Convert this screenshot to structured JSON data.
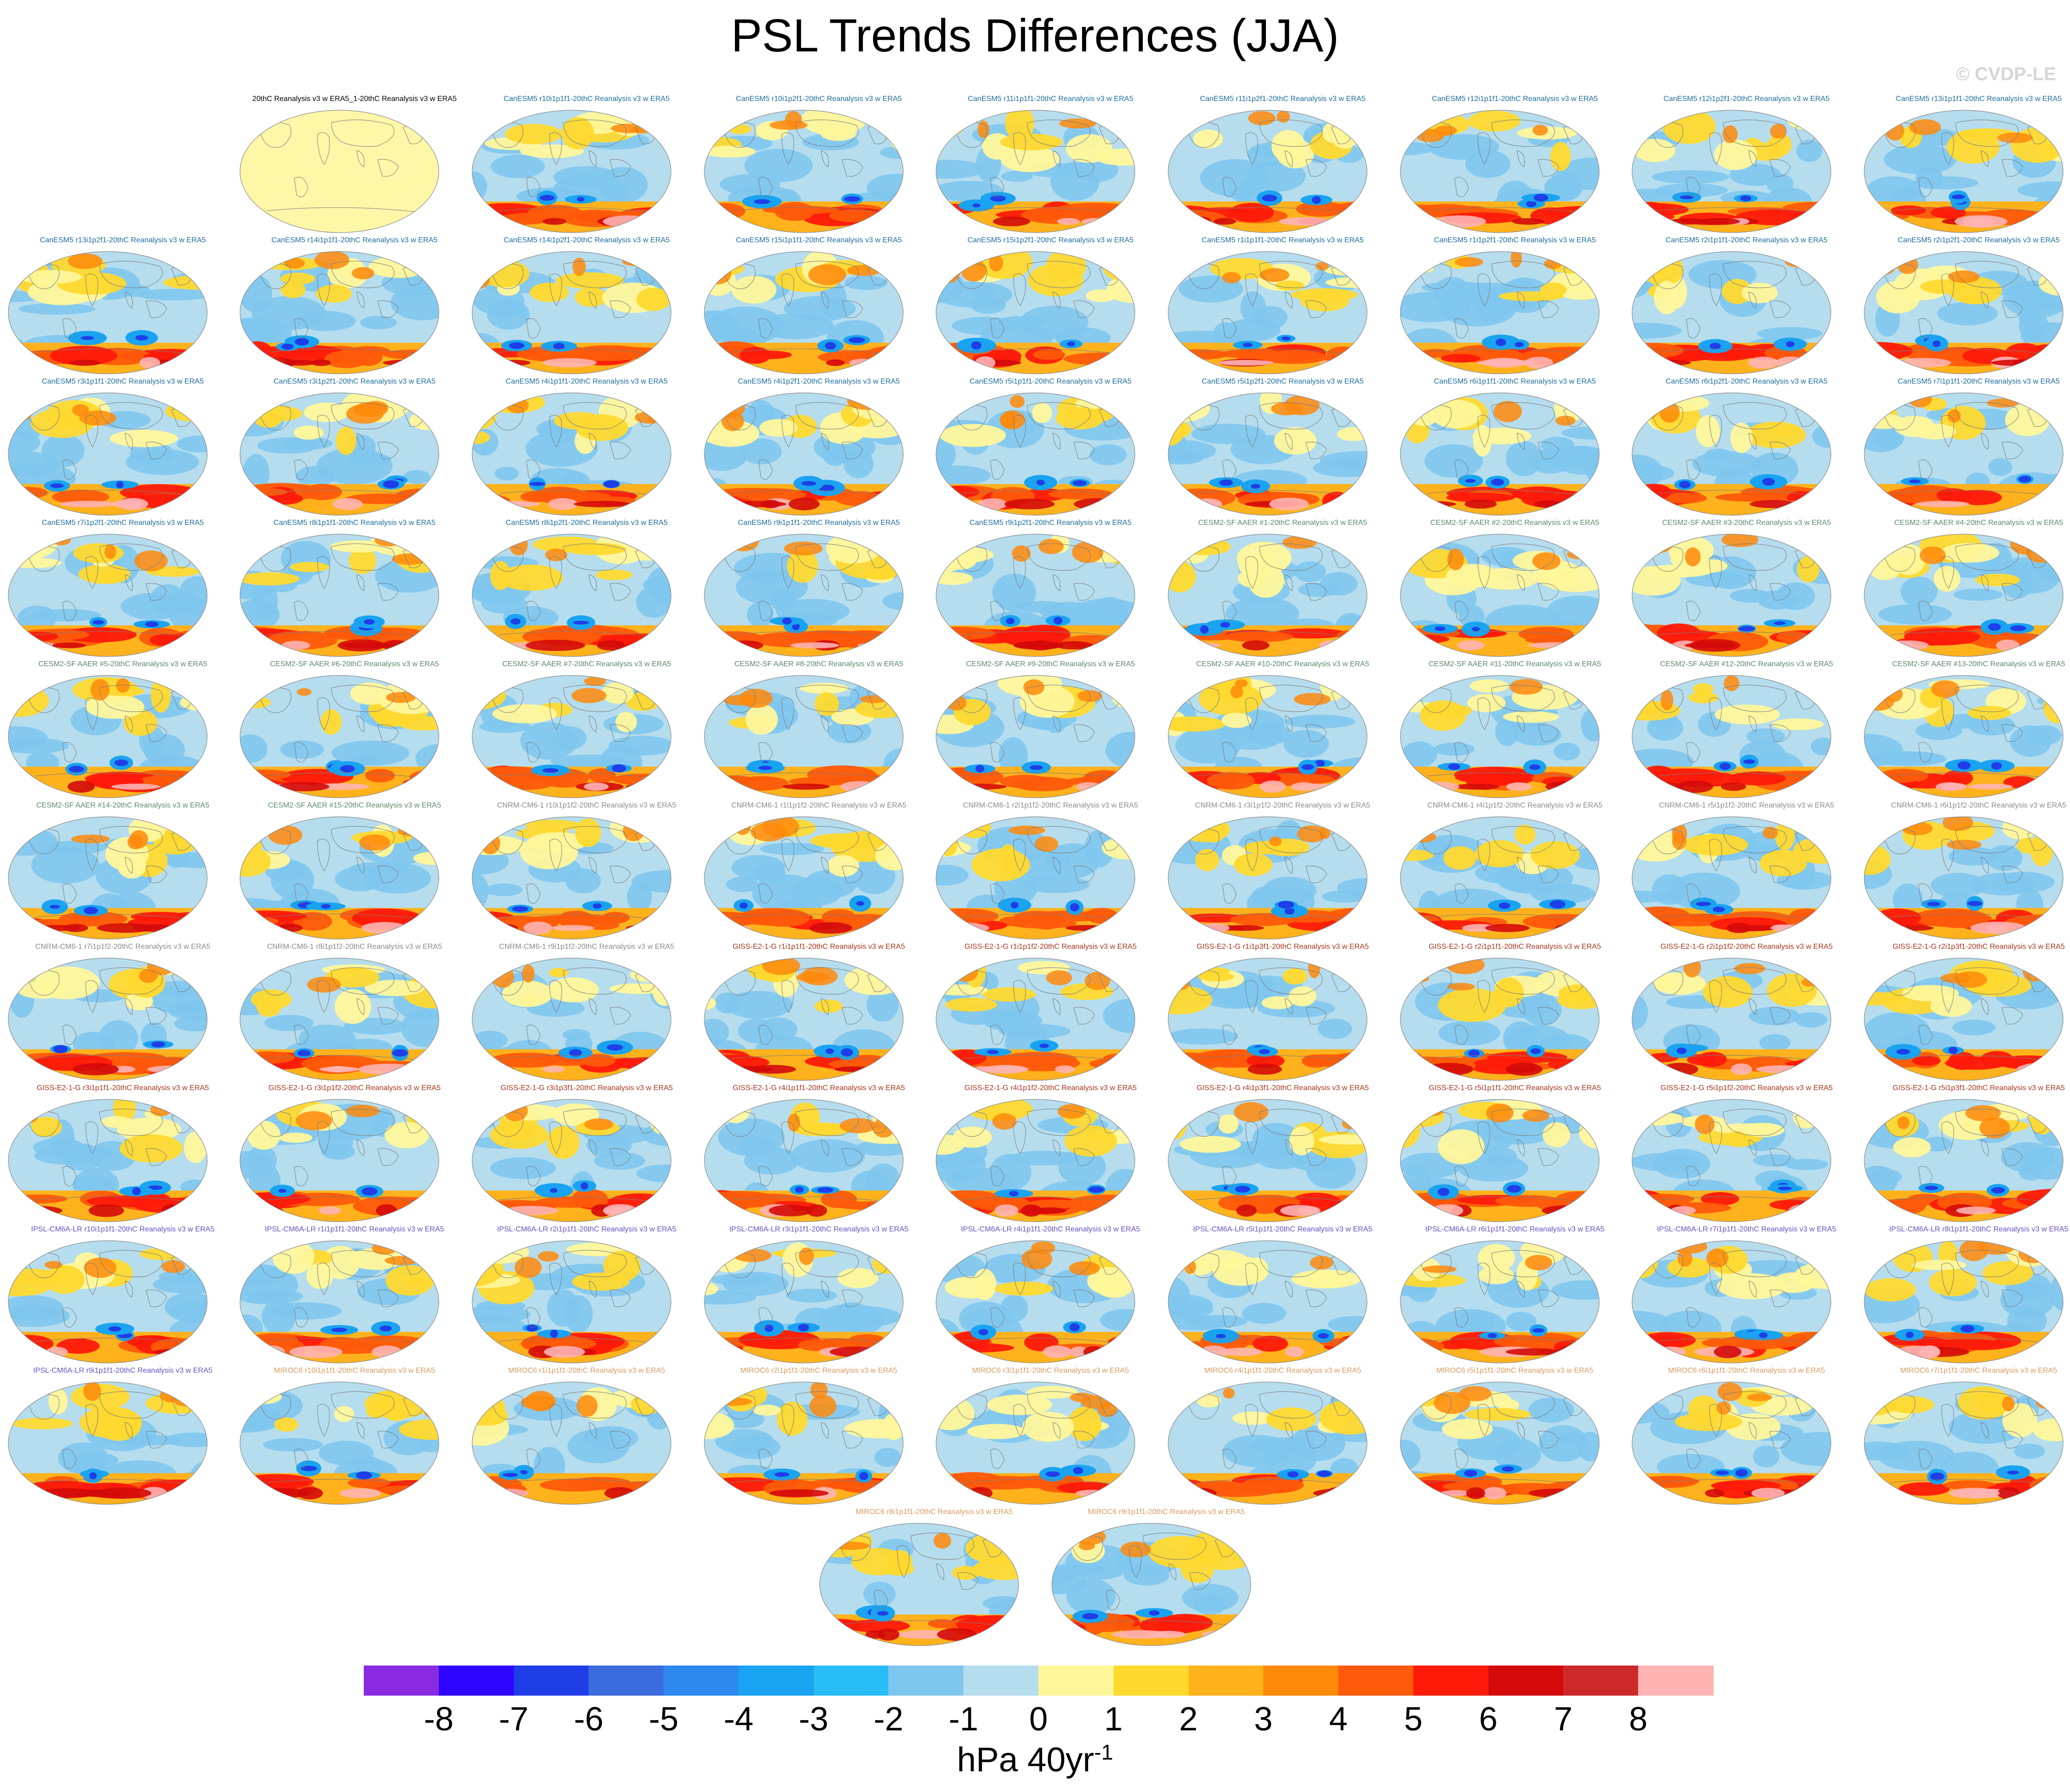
{
  "title": "PSL Trends Differences (JJA)",
  "watermark": "© CVDP-LE",
  "units": {
    "text": "hPa 40yr",
    "superscript": "-1"
  },
  "colorbar": {
    "colors": [
      "#8a2be2",
      "#2d05ff",
      "#1f3ee8",
      "#3a6cdd",
      "#2f88ee",
      "#1aa3f0",
      "#29bdf6",
      "#7fc6ee",
      "#b5ddee",
      "#fff79a",
      "#ffd92e",
      "#ffb21c",
      "#ff8a0a",
      "#ff5a0a",
      "#ff1a0a",
      "#d40a0a",
      "#cc2a2a",
      "#ffb4b4"
    ],
    "labels": [
      "-8",
      "-7",
      "-6",
      "-5",
      "-4",
      "-3",
      "-2",
      "-1",
      "0",
      "1",
      "2",
      "3",
      "4",
      "5",
      "6",
      "7",
      "8"
    ]
  },
  "group_colors": {
    "obs": "#000000",
    "CanESM5": "#1c6e9c",
    "CESM2": "#5a8a6a",
    "CNRM": "#8a8a8a",
    "GISS": "#a6361b",
    "IPSL": "#6a4fc2",
    "MIROC6": "#d99a5e"
  },
  "panels": [
    {
      "title": "20thC Reanalysis v3 w ERA5_1-20thC Reanalysis v3 w ERA5",
      "group": "obs",
      "style": "blank"
    },
    {
      "title": "CanESM5 r10i1p1f1-20thC Reanalysis v3 w ERA5",
      "group": "CanESM5",
      "style": "map"
    },
    {
      "title": "CanESM5 r10i1p2f1-20thC Reanalysis v3 w ERA5",
      "group": "CanESM5",
      "style": "map"
    },
    {
      "title": "CanESM5 r11i1p1f1-20thC Reanalysis v3 w ERA5",
      "group": "CanESM5",
      "style": "map"
    },
    {
      "title": "CanESM5 r11i1p2f1-20thC Reanalysis v3 w ERA5",
      "group": "CanESM5",
      "style": "map"
    },
    {
      "title": "CanESM5 r12i1p1f1-20thC Reanalysis v3 w ERA5",
      "group": "CanESM5",
      "style": "map"
    },
    {
      "title": "CanESM5 r12i1p2f1-20thC Reanalysis v3 w ERA5",
      "group": "CanESM5",
      "style": "map"
    },
    {
      "title": "CanESM5 r13i1p1f1-20thC Reanalysis v3 w ERA5",
      "group": "CanESM5",
      "style": "map"
    },
    {
      "title": "CanESM5 r13i1p2f1-20thC Reanalysis v3 w ERA5",
      "group": "CanESM5",
      "style": "map"
    },
    {
      "title": "CanESM5 r14i1p1f1-20thC Reanalysis v3 w ERA5",
      "group": "CanESM5",
      "style": "map"
    },
    {
      "title": "CanESM5 r14i1p2f1-20thC Reanalysis v3 w ERA5",
      "group": "CanESM5",
      "style": "map"
    },
    {
      "title": "CanESM5 r15i1p1f1-20thC Reanalysis v3 w ERA5",
      "group": "CanESM5",
      "style": "map"
    },
    {
      "title": "CanESM5 r15i1p2f1-20thC Reanalysis v3 w ERA5",
      "group": "CanESM5",
      "style": "map"
    },
    {
      "title": "CanESM5 r1i1p1f1-20thC Reanalysis v3 w ERA5",
      "group": "CanESM5",
      "style": "map"
    },
    {
      "title": "CanESM5 r1i1p2f1-20thC Reanalysis v3 w ERA5",
      "group": "CanESM5",
      "style": "map"
    },
    {
      "title": "CanESM5 r2i1p1f1-20thC Reanalysis v3 w ERA5",
      "group": "CanESM5",
      "style": "map"
    },
    {
      "title": "CanESM5 r2i1p2f1-20thC Reanalysis v3 w ERA5",
      "group": "CanESM5",
      "style": "map"
    },
    {
      "title": "CanESM5 r3i1p1f1-20thC Reanalysis v3 w ERA5",
      "group": "CanESM5",
      "style": "map"
    },
    {
      "title": "CanESM5 r3i1p2f1-20thC Reanalysis v3 w ERA5",
      "group": "CanESM5",
      "style": "map"
    },
    {
      "title": "CanESM5 r4i1p1f1-20thC Reanalysis v3 w ERA5",
      "group": "CanESM5",
      "style": "map"
    },
    {
      "title": "CanESM5 r4i1p2f1-20thC Reanalysis v3 w ERA5",
      "group": "CanESM5",
      "style": "map"
    },
    {
      "title": "CanESM5 r5i1p1f1-20thC Reanalysis v3 w ERA5",
      "group": "CanESM5",
      "style": "map"
    },
    {
      "title": "CanESM5 r5i1p2f1-20thC Reanalysis v3 w ERA5",
      "group": "CanESM5",
      "style": "map"
    },
    {
      "title": "CanESM5 r6i1p1f1-20thC Reanalysis v3 w ERA5",
      "group": "CanESM5",
      "style": "map"
    },
    {
      "title": "CanESM5 r6i1p2f1-20thC Reanalysis v3 w ERA5",
      "group": "CanESM5",
      "style": "map"
    },
    {
      "title": "CanESM5 r7i1p1f1-20thC Reanalysis v3 w ERA5",
      "group": "CanESM5",
      "style": "map"
    },
    {
      "title": "CanESM5 r7i1p2f1-20thC Reanalysis v3 w ERA5",
      "group": "CanESM5",
      "style": "map"
    },
    {
      "title": "CanESM5 r8i1p1f1-20thC Reanalysis v3 w ERA5",
      "group": "CanESM5",
      "style": "map"
    },
    {
      "title": "CanESM5 r8i1p2f1-20thC Reanalysis v3 w ERA5",
      "group": "CanESM5",
      "style": "map"
    },
    {
      "title": "CanESM5 r9i1p1f1-20thC Reanalysis v3 w ERA5",
      "group": "CanESM5",
      "style": "map"
    },
    {
      "title": "CanESM5 r9i1p2f1-20thC Reanalysis v3 w ERA5",
      "group": "CanESM5",
      "style": "map"
    },
    {
      "title": "CESM2-SF AAER #1-20thC Reanalysis v3 w ERA5",
      "group": "CESM2",
      "style": "map"
    },
    {
      "title": "CESM2-SF AAER #2-20thC Reanalysis v3 w ERA5",
      "group": "CESM2",
      "style": "map"
    },
    {
      "title": "CESM2-SF AAER #3-20thC Reanalysis v3 w ERA5",
      "group": "CESM2",
      "style": "map"
    },
    {
      "title": "CESM2-SF AAER #4-20thC Reanalysis v3 w ERA5",
      "group": "CESM2",
      "style": "map"
    },
    {
      "title": "CESM2-SF AAER #5-20thC Reanalysis v3 w ERA5",
      "group": "CESM2",
      "style": "map"
    },
    {
      "title": "CESM2-SF AAER #6-20thC Reanalysis v3 w ERA5",
      "group": "CESM2",
      "style": "map"
    },
    {
      "title": "CESM2-SF AAER #7-20thC Reanalysis v3 w ERA5",
      "group": "CESM2",
      "style": "map"
    },
    {
      "title": "CESM2-SF AAER #8-20thC Reanalysis v3 w ERA5",
      "group": "CESM2",
      "style": "map"
    },
    {
      "title": "CESM2-SF AAER #9-20thC Reanalysis v3 w ERA5",
      "group": "CESM2",
      "style": "map"
    },
    {
      "title": "CESM2-SF AAER #10-20thC Reanalysis v3 w ERA5",
      "group": "CESM2",
      "style": "map"
    },
    {
      "title": "CESM2-SF AAER #11-20thC Reanalysis v3 w ERA5",
      "group": "CESM2",
      "style": "map"
    },
    {
      "title": "CESM2-SF AAER #12-20thC Reanalysis v3 w ERA5",
      "group": "CESM2",
      "style": "map"
    },
    {
      "title": "CESM2-SF AAER #13-20thC Reanalysis v3 w ERA5",
      "group": "CESM2",
      "style": "map"
    },
    {
      "title": "CESM2-SF AAER #14-20thC Reanalysis v3 w ERA5",
      "group": "CESM2",
      "style": "map"
    },
    {
      "title": "CESM2-SF AAER #15-20thC Reanalysis v3 w ERA5",
      "group": "CESM2",
      "style": "map"
    },
    {
      "title": "CNRM-CM6-1 r10i1p1f2-20thC Reanalysis v3 w ERA5",
      "group": "CNRM",
      "style": "map"
    },
    {
      "title": "CNRM-CM6-1 r1i1p1f2-20thC Reanalysis v3 w ERA5",
      "group": "CNRM",
      "style": "map"
    },
    {
      "title": "CNRM-CM6-1 r2i1p1f2-20thC Reanalysis v3 w ERA5",
      "group": "CNRM",
      "style": "map"
    },
    {
      "title": "CNRM-CM6-1 r3i1p1f2-20thC Reanalysis v3 w ERA5",
      "group": "CNRM",
      "style": "map"
    },
    {
      "title": "CNRM-CM6-1 r4i1p1f2-20thC Reanalysis v3 w ERA5",
      "group": "CNRM",
      "style": "map"
    },
    {
      "title": "CNRM-CM6-1 r5i1p1f2-20thC Reanalysis v3 w ERA5",
      "group": "CNRM",
      "style": "map"
    },
    {
      "title": "CNRM-CM6-1 r6i1p1f2-20thC Reanalysis v3 w ERA5",
      "group": "CNRM",
      "style": "map"
    },
    {
      "title": "CNRM-CM6-1 r7i1p1f2-20thC Reanalysis v3 w ERA5",
      "group": "CNRM",
      "style": "map"
    },
    {
      "title": "CNRM-CM6-1 r8i1p1f2-20thC Reanalysis v3 w ERA5",
      "group": "CNRM",
      "style": "map"
    },
    {
      "title": "CNRM-CM6-1 r9i1p1f2-20thC Reanalysis v3 w ERA5",
      "group": "CNRM",
      "style": "map"
    },
    {
      "title": "GISS-E2-1-G r1i1p1f1-20thC Reanalysis v3 w ERA5",
      "group": "GISS",
      "style": "map"
    },
    {
      "title": "GISS-E2-1-G r1i1p1f2-20thC Reanalysis v3 w ERA5",
      "group": "GISS",
      "style": "map"
    },
    {
      "title": "GISS-E2-1-G r1i1p3f1-20thC Reanalysis v3 w ERA5",
      "group": "GISS",
      "style": "map"
    },
    {
      "title": "GISS-E2-1-G r2i1p1f1-20thC Reanalysis v3 w ERA5",
      "group": "GISS",
      "style": "map"
    },
    {
      "title": "GISS-E2-1-G r2i1p1f2-20thC Reanalysis v3 w ERA5",
      "group": "GISS",
      "style": "map"
    },
    {
      "title": "GISS-E2-1-G r2i1p3f1-20thC Reanalysis v3 w ERA5",
      "group": "GISS",
      "style": "map"
    },
    {
      "title": "GISS-E2-1-G r3i1p1f1-20thC Reanalysis v3 w ERA5",
      "group": "GISS",
      "style": "map"
    },
    {
      "title": "GISS-E2-1-G r3i1p1f2-20thC Reanalysis v3 w ERA5",
      "group": "GISS",
      "style": "map"
    },
    {
      "title": "GISS-E2-1-G r3i1p3f1-20thC Reanalysis v3 w ERA5",
      "group": "GISS",
      "style": "map"
    },
    {
      "title": "GISS-E2-1-G r4i1p1f1-20thC Reanalysis v3 w ERA5",
      "group": "GISS",
      "style": "map"
    },
    {
      "title": "GISS-E2-1-G r4i1p1f2-20thC Reanalysis v3 w ERA5",
      "group": "GISS",
      "style": "map"
    },
    {
      "title": "GISS-E2-1-G r4i1p3f1-20thC Reanalysis v3 w ERA5",
      "group": "GISS",
      "style": "map"
    },
    {
      "title": "GISS-E2-1-G r5i1p1f1-20thC Reanalysis v3 w ERA5",
      "group": "GISS",
      "style": "map"
    },
    {
      "title": "GISS-E2-1-G r5i1p1f2-20thC Reanalysis v3 w ERA5",
      "group": "GISS",
      "style": "map"
    },
    {
      "title": "GISS-E2-1-G r5i1p3f1-20thC Reanalysis v3 w ERA5",
      "group": "GISS",
      "style": "map"
    },
    {
      "title": "IPSL-CM6A-LR r10i1p1f1-20thC Reanalysis v3 w ERA5",
      "group": "IPSL",
      "style": "map"
    },
    {
      "title": "IPSL-CM6A-LR r1i1p1f1-20thC Reanalysis v3 w ERA5",
      "group": "IPSL",
      "style": "map"
    },
    {
      "title": "IPSL-CM6A-LR r2i1p1f1-20thC Reanalysis v3 w ERA5",
      "group": "IPSL",
      "style": "map"
    },
    {
      "title": "IPSL-CM6A-LR r3i1p1f1-20thC Reanalysis v3 w ERA5",
      "group": "IPSL",
      "style": "map"
    },
    {
      "title": "IPSL-CM6A-LR r4i1p1f1-20thC Reanalysis v3 w ERA5",
      "group": "IPSL",
      "style": "map"
    },
    {
      "title": "IPSL-CM6A-LR r5i1p1f1-20thC Reanalysis v3 w ERA5",
      "group": "IPSL",
      "style": "map"
    },
    {
      "title": "IPSL-CM6A-LR r6i1p1f1-20thC Reanalysis v3 w ERA5",
      "group": "IPSL",
      "style": "map"
    },
    {
      "title": "IPSL-CM6A-LR r7i1p1f1-20thC Reanalysis v3 w ERA5",
      "group": "IPSL",
      "style": "map"
    },
    {
      "title": "IPSL-CM6A-LR r8i1p1f1-20thC Reanalysis v3 w ERA5",
      "group": "IPSL",
      "style": "map"
    },
    {
      "title": "IPSL-CM6A-LR r9i1p1f1-20thC Reanalysis v3 w ERA5",
      "group": "IPSL",
      "style": "map"
    },
    {
      "title": "MIROC6 r10i1p1f1-20thC Reanalysis v3 w ERA5",
      "group": "MIROC6",
      "style": "map"
    },
    {
      "title": "MIROC6 r1i1p1f1-20thC Reanalysis v3 w ERA5",
      "group": "MIROC6",
      "style": "map"
    },
    {
      "title": "MIROC6 r2i1p1f1-20thC Reanalysis v3 w ERA5",
      "group": "MIROC6",
      "style": "map"
    },
    {
      "title": "MIROC6 r3i1p1f1-20thC Reanalysis v3 w ERA5",
      "group": "MIROC6",
      "style": "map"
    },
    {
      "title": "MIROC6 r4i1p1f1-20thC Reanalysis v3 w ERA5",
      "group": "MIROC6",
      "style": "map"
    },
    {
      "title": "MIROC6 r5i1p1f1-20thC Reanalysis v3 w ERA5",
      "group": "MIROC6",
      "style": "map"
    },
    {
      "title": "MIROC6 r6i1p1f1-20thC Reanalysis v3 w ERA5",
      "group": "MIROC6",
      "style": "map"
    },
    {
      "title": "MIROC6 r7i1p1f1-20thC Reanalysis v3 w ERA5",
      "group": "MIROC6",
      "style": "map"
    },
    {
      "title": "MIROC6 r8i1p1f1-20thC Reanalysis v3 w ERA5",
      "group": "MIROC6",
      "style": "map"
    },
    {
      "title": "MIROC6 r9i1p1f1-20thC Reanalysis v3 w ERA5",
      "group": "MIROC6",
      "style": "map"
    }
  ]
}
